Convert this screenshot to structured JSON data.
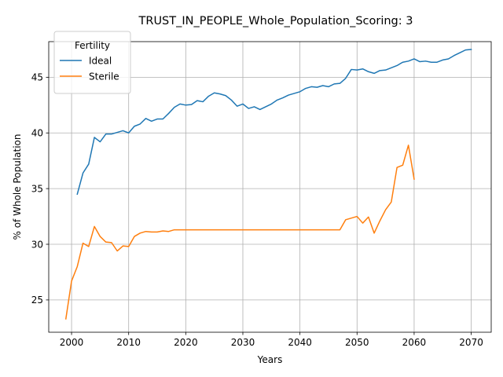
{
  "chart_data": {
    "type": "line",
    "title": "TRUST_IN_PEOPLE_Whole_Population_Scoring: 3",
    "xlabel": "Years",
    "ylabel": "% of Whole Population",
    "xlim": [
      1996,
      2073.5
    ],
    "ylim": [
      22.1,
      48.2
    ],
    "xticks": [
      2000,
      2010,
      2020,
      2030,
      2040,
      2050,
      2060,
      2070
    ],
    "yticks": [
      25,
      30,
      35,
      40,
      45
    ],
    "grid": true,
    "legend": {
      "title": "Fertility",
      "placement": "top-left"
    },
    "series": [
      {
        "name": "Ideal",
        "color": "#1f77b4",
        "x": [
          2001,
          2002,
          2003,
          2004,
          2005,
          2006,
          2007,
          2008,
          2009,
          2010,
          2011,
          2012,
          2013,
          2014,
          2015,
          2016,
          2017,
          2018,
          2019,
          2020,
          2021,
          2022,
          2023,
          2024,
          2025,
          2026,
          2027,
          2028,
          2029,
          2030,
          2031,
          2032,
          2033,
          2034,
          2035,
          2036,
          2037,
          2038,
          2039,
          2040,
          2041,
          2042,
          2043,
          2044,
          2045,
          2046,
          2047,
          2048,
          2049,
          2050,
          2051,
          2052,
          2053,
          2054,
          2055,
          2056,
          2057,
          2058,
          2059,
          2060,
          2061,
          2062,
          2063,
          2064,
          2065,
          2066,
          2067,
          2068,
          2069,
          2070
        ],
        "values": [
          34.5,
          36.4,
          37.2,
          39.6,
          39.2,
          39.9,
          39.9,
          40.05,
          40.2,
          40.0,
          40.6,
          40.8,
          41.3,
          41.05,
          41.25,
          41.25,
          41.75,
          42.3,
          42.6,
          42.5,
          42.55,
          42.9,
          42.8,
          43.3,
          43.6,
          43.5,
          43.35,
          42.95,
          42.4,
          42.6,
          42.2,
          42.35,
          42.1,
          42.35,
          42.6,
          42.95,
          43.15,
          43.4,
          43.55,
          43.7,
          44.0,
          44.15,
          44.1,
          44.25,
          44.15,
          44.4,
          44.45,
          44.9,
          45.7,
          45.65,
          45.75,
          45.5,
          45.35,
          45.6,
          45.65,
          45.85,
          46.05,
          46.35,
          46.45,
          46.65,
          46.4,
          46.45,
          46.35,
          46.35,
          46.55,
          46.65,
          46.95,
          47.2,
          47.45,
          47.5
        ]
      },
      {
        "name": "Sterile",
        "color": "#ff7f0e",
        "x": [
          1999,
          2000,
          2001,
          2002,
          2003,
          2004,
          2005,
          2006,
          2007,
          2008,
          2009,
          2010,
          2011,
          2012,
          2013,
          2014,
          2015,
          2016,
          2017,
          2018,
          2019,
          2020,
          2021,
          2022,
          2023,
          2024,
          2025,
          2026,
          2027,
          2028,
          2029,
          2030,
          2031,
          2032,
          2033,
          2034,
          2035,
          2036,
          2037,
          2038,
          2039,
          2040,
          2041,
          2042,
          2043,
          2044,
          2045,
          2046,
          2047,
          2048,
          2049,
          2050,
          2051,
          2052,
          2053,
          2054,
          2055,
          2056,
          2057,
          2058,
          2059,
          2060
        ],
        "values": [
          23.3,
          26.7,
          28.0,
          30.1,
          29.8,
          31.6,
          30.7,
          30.2,
          30.15,
          29.4,
          29.85,
          29.8,
          30.7,
          31.0,
          31.15,
          31.1,
          31.1,
          31.2,
          31.15,
          31.3,
          31.3,
          31.3,
          31.3,
          31.3,
          31.3,
          31.3,
          31.3,
          31.3,
          31.3,
          31.3,
          31.3,
          31.3,
          31.3,
          31.3,
          31.3,
          31.3,
          31.3,
          31.3,
          31.3,
          31.3,
          31.3,
          31.3,
          31.3,
          31.3,
          31.3,
          31.3,
          31.3,
          31.3,
          31.3,
          32.2,
          32.35,
          32.5,
          31.9,
          32.45,
          31.0,
          32.1,
          33.1,
          33.8,
          36.9,
          37.1,
          38.9,
          35.85
        ]
      }
    ]
  }
}
